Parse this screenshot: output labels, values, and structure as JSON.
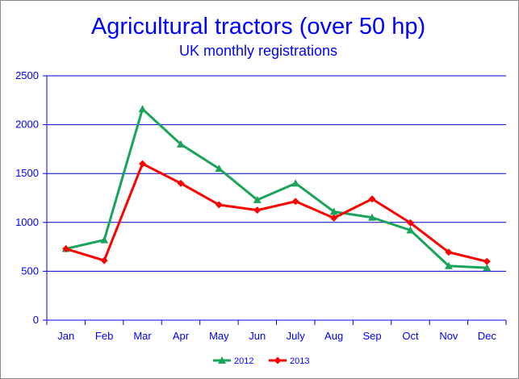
{
  "chart_data": {
    "type": "line",
    "title": "Agricultural tractors (over 50 hp)",
    "subtitle": "UK monthly registrations",
    "xlabel": "",
    "ylabel": "",
    "categories": [
      "Jan",
      "Feb",
      "Mar",
      "Apr",
      "May",
      "Jun",
      "July",
      "Aug",
      "Sep",
      "Oct",
      "Nov",
      "Dec"
    ],
    "ylim": [
      0,
      2500
    ],
    "yticks": [
      "0",
      "500",
      "1000",
      "1500",
      "2000",
      "2500"
    ],
    "grid": true,
    "legend_position": "bottom",
    "series": [
      {
        "name": "2012",
        "color": "#1aa35a",
        "marker": "triangle",
        "values": [
          730,
          820,
          2160,
          1800,
          1550,
          1230,
          1400,
          1110,
          1050,
          920,
          555,
          535
        ]
      },
      {
        "name": "2013",
        "color": "#ff0000",
        "marker": "diamond",
        "values": [
          730,
          610,
          1600,
          1400,
          1180,
          1125,
          1215,
          1045,
          1240,
          995,
          695,
          600
        ]
      }
    ]
  }
}
